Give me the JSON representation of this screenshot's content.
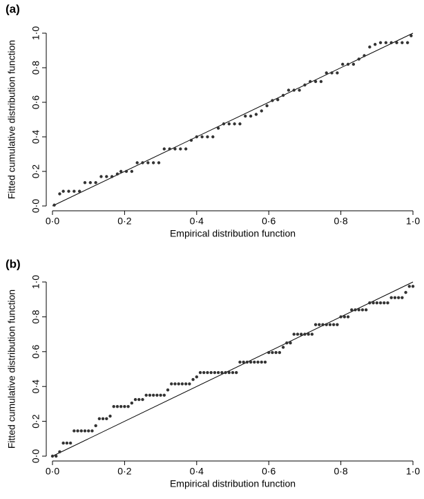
{
  "chart_data": [
    {
      "type": "scatter",
      "label": "(a)",
      "x_label": "Empirical distribution function",
      "y_label": "Fitted cumulative distribution function",
      "color": "#333333",
      "x": [
        0.005,
        0.02,
        0.03,
        0.045,
        0.06,
        0.075,
        0.09,
        0.105,
        0.12,
        0.135,
        0.15,
        0.165,
        0.18,
        0.19,
        0.205,
        0.22,
        0.235,
        0.25,
        0.265,
        0.28,
        0.295,
        0.31,
        0.325,
        0.34,
        0.355,
        0.37,
        0.385,
        0.4,
        0.415,
        0.43,
        0.445,
        0.46,
        0.475,
        0.49,
        0.505,
        0.52,
        0.535,
        0.55,
        0.565,
        0.58,
        0.595,
        0.61,
        0.625,
        0.64,
        0.655,
        0.67,
        0.685,
        0.7,
        0.715,
        0.73,
        0.745,
        0.76,
        0.775,
        0.79,
        0.805,
        0.82,
        0.835,
        0.85,
        0.865,
        0.88,
        0.895,
        0.91,
        0.925,
        0.94,
        0.955,
        0.97,
        0.985,
        0.995
      ],
      "values": [
        0.005,
        0.07,
        0.085,
        0.085,
        0.085,
        0.085,
        0.135,
        0.135,
        0.135,
        0.17,
        0.17,
        0.17,
        0.185,
        0.2,
        0.2,
        0.2,
        0.25,
        0.25,
        0.25,
        0.25,
        0.25,
        0.33,
        0.33,
        0.33,
        0.33,
        0.33,
        0.38,
        0.4,
        0.4,
        0.4,
        0.4,
        0.45,
        0.475,
        0.475,
        0.475,
        0.475,
        0.52,
        0.52,
        0.53,
        0.55,
        0.58,
        0.61,
        0.615,
        0.64,
        0.67,
        0.67,
        0.67,
        0.7,
        0.72,
        0.72,
        0.72,
        0.77,
        0.77,
        0.77,
        0.82,
        0.82,
        0.82,
        0.85,
        0.87,
        0.92,
        0.935,
        0.945,
        0.945,
        0.945,
        0.945,
        0.945,
        0.945,
        0.985
      ],
      "xlim": [
        0,
        1
      ],
      "ylim": [
        0,
        1
      ],
      "xticks": [
        {
          "value": 0,
          "label": "0·0"
        },
        {
          "value": 0.2,
          "label": "0·2"
        },
        {
          "value": 0.4,
          "label": "0·4"
        },
        {
          "value": 0.6,
          "label": "0·6"
        },
        {
          "value": 0.8,
          "label": "0·8"
        },
        {
          "value": 1,
          "label": "1·0"
        }
      ],
      "yticks": [
        {
          "value": 0,
          "label": "0·0"
        },
        {
          "value": 0.2,
          "label": "0·2"
        },
        {
          "value": 0.4,
          "label": "0·4"
        },
        {
          "value": 0.6,
          "label": "0·6"
        },
        {
          "value": 0.8,
          "label": "0·8"
        },
        {
          "value": 1,
          "label": "1·0"
        }
      ]
    },
    {
      "type": "scatter",
      "label": "(b)",
      "x_label": "Empirical distribution function",
      "y_label": "Fitted cumulative distribution function",
      "color": "#333333",
      "x": [
        0,
        0.01,
        0.02,
        0.03,
        0.04,
        0.05,
        0.06,
        0.07,
        0.08,
        0.09,
        0.1,
        0.11,
        0.12,
        0.13,
        0.14,
        0.15,
        0.16,
        0.17,
        0.18,
        0.19,
        0.2,
        0.21,
        0.22,
        0.23,
        0.24,
        0.25,
        0.26,
        0.27,
        0.28,
        0.29,
        0.3,
        0.31,
        0.32,
        0.33,
        0.34,
        0.35,
        0.36,
        0.37,
        0.38,
        0.39,
        0.4,
        0.41,
        0.42,
        0.43,
        0.44,
        0.45,
        0.46,
        0.47,
        0.48,
        0.49,
        0.5,
        0.51,
        0.52,
        0.53,
        0.54,
        0.55,
        0.56,
        0.57,
        0.58,
        0.59,
        0.6,
        0.61,
        0.62,
        0.63,
        0.64,
        0.65,
        0.66,
        0.67,
        0.68,
        0.69,
        0.7,
        0.71,
        0.72,
        0.73,
        0.74,
        0.75,
        0.76,
        0.77,
        0.78,
        0.79,
        0.8,
        0.81,
        0.82,
        0.83,
        0.84,
        0.85,
        0.86,
        0.87,
        0.88,
        0.89,
        0.9,
        0.91,
        0.92,
        0.93,
        0.94,
        0.95,
        0.96,
        0.97,
        0.98,
        0.99,
        1
      ],
      "values": [
        0,
        0,
        0.025,
        0.075,
        0.075,
        0.075,
        0.145,
        0.145,
        0.145,
        0.145,
        0.145,
        0.145,
        0.175,
        0.215,
        0.215,
        0.215,
        0.23,
        0.285,
        0.285,
        0.285,
        0.285,
        0.285,
        0.305,
        0.325,
        0.325,
        0.325,
        0.35,
        0.35,
        0.35,
        0.35,
        0.35,
        0.35,
        0.38,
        0.415,
        0.415,
        0.415,
        0.415,
        0.415,
        0.415,
        0.44,
        0.455,
        0.48,
        0.48,
        0.48,
        0.48,
        0.48,
        0.48,
        0.48,
        0.48,
        0.48,
        0.48,
        0.48,
        0.54,
        0.54,
        0.54,
        0.54,
        0.54,
        0.54,
        0.54,
        0.54,
        0.595,
        0.595,
        0.595,
        0.595,
        0.625,
        0.65,
        0.65,
        0.7,
        0.7,
        0.7,
        0.7,
        0.7,
        0.7,
        0.755,
        0.755,
        0.755,
        0.755,
        0.755,
        0.755,
        0.755,
        0.8,
        0.8,
        0.8,
        0.84,
        0.84,
        0.84,
        0.84,
        0.84,
        0.88,
        0.88,
        0.88,
        0.88,
        0.88,
        0.88,
        0.91,
        0.91,
        0.91,
        0.91,
        0.94,
        0.975,
        0.975
      ],
      "xlim": [
        0,
        1
      ],
      "ylim": [
        0,
        1
      ],
      "xticks": [
        {
          "value": 0,
          "label": "0·0"
        },
        {
          "value": 0.2,
          "label": "0·2"
        },
        {
          "value": 0.4,
          "label": "0·4"
        },
        {
          "value": 0.6,
          "label": "0·6"
        },
        {
          "value": 0.8,
          "label": "0·8"
        },
        {
          "value": 1,
          "label": "1·0"
        }
      ],
      "yticks": [
        {
          "value": 0,
          "label": "0·0"
        },
        {
          "value": 0.2,
          "label": "0·2"
        },
        {
          "value": 0.4,
          "label": "0·4"
        },
        {
          "value": 0.6,
          "label": "0·6"
        },
        {
          "value": 0.8,
          "label": "0·8"
        },
        {
          "value": 1,
          "label": "1·0"
        }
      ]
    }
  ]
}
